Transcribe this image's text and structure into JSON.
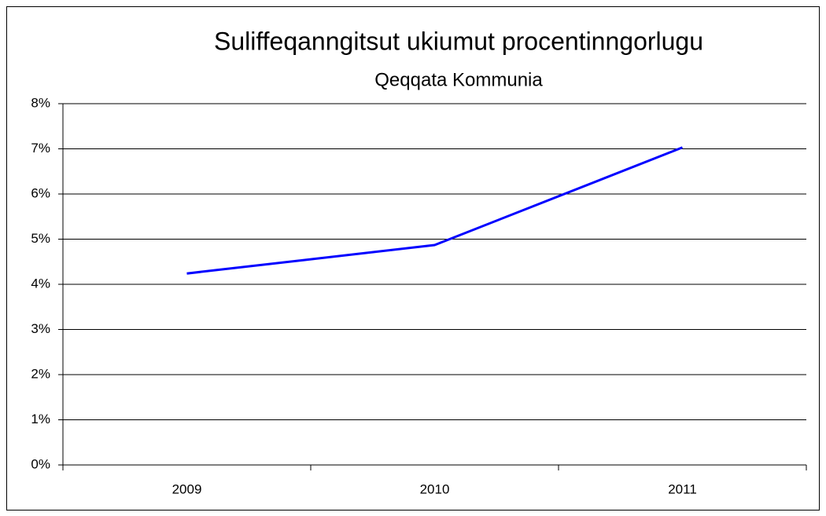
{
  "chart_data": {
    "type": "line",
    "title": "Suliffeqanngitsut ukiumut procentinngorlugu",
    "subtitle": "Qeqqata Kommunia",
    "categories": [
      "2009",
      "2010",
      "2011"
    ],
    "values": [
      4.24,
      4.87,
      7.03
    ],
    "color": "#0000ff",
    "ylim": [
      0,
      8
    ],
    "yticks": [
      {
        "value": 0,
        "label": "0%"
      },
      {
        "value": 1,
        "label": "1%"
      },
      {
        "value": 2,
        "label": "2%"
      },
      {
        "value": 3,
        "label": "3%"
      },
      {
        "value": 4,
        "label": "4%"
      },
      {
        "value": 5,
        "label": "5%"
      },
      {
        "value": 6,
        "label": "6%"
      },
      {
        "value": 7,
        "label": "7%"
      },
      {
        "value": 8,
        "label": "8%"
      }
    ],
    "grid": true
  }
}
